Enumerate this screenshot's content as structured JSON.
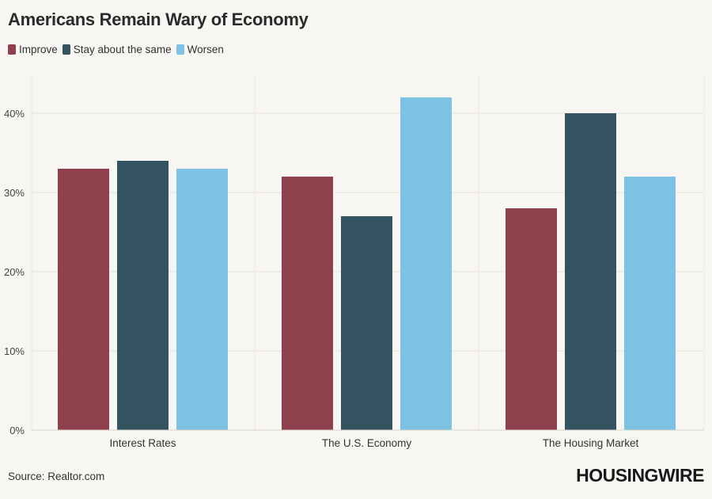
{
  "title": "Americans Remain Wary of Economy",
  "source": "Source: Realtor.com",
  "brand": "HOUSINGWIRE",
  "chart_data": {
    "type": "bar",
    "title": "Americans Remain Wary of Economy",
    "categories": [
      "Interest Rates",
      "The U.S. Economy",
      "The Housing Market"
    ],
    "series": [
      {
        "name": "Improve",
        "color": "#8e404d",
        "values": [
          33,
          32,
          28
        ]
      },
      {
        "name": "Stay about the same",
        "color": "#32535f",
        "values": [
          34,
          27,
          40
        ]
      },
      {
        "name": "Worsen",
        "color": "#7dc2e2",
        "values": [
          33,
          42,
          32
        ]
      }
    ],
    "yticks": [
      "0%",
      "10%",
      "20%",
      "30%",
      "40%"
    ],
    "ylim": [
      0,
      45
    ],
    "grid": true,
    "legend": "top-left"
  }
}
